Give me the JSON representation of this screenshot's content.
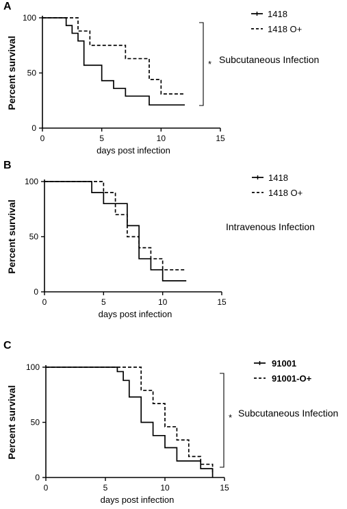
{
  "chart_data": [
    {
      "type": "line",
      "panel_label": "A",
      "xlabel": "days post infection",
      "ylabel": "Percent survival",
      "xlim": [
        0,
        15
      ],
      "ylim": [
        0,
        100
      ],
      "xticks": [
        0,
        5,
        10,
        15
      ],
      "yticks": [
        0,
        50,
        100
      ],
      "annotation": "Subcutaneous Infection",
      "significance": "*",
      "legend_position": "top-right",
      "series": [
        {
          "name": "1418",
          "style": "solid",
          "bold": false,
          "x": [
            0,
            2,
            2.5,
            3,
            3.5,
            4,
            5,
            6,
            7,
            9,
            12
          ],
          "y": [
            100,
            93,
            86,
            79,
            57,
            57,
            43,
            36,
            29,
            21,
            21
          ]
        },
        {
          "name": "1418 O+",
          "style": "dashed",
          "bold": false,
          "x": [
            0,
            2.5,
            3,
            4,
            5,
            7,
            9,
            10,
            12
          ],
          "y": [
            100,
            100,
            88,
            75,
            75,
            63,
            44,
            31,
            31
          ]
        }
      ]
    },
    {
      "type": "line",
      "panel_label": "B",
      "xlabel": "days post infection",
      "ylabel": "Percent survival",
      "xlim": [
        0,
        15
      ],
      "ylim": [
        0,
        100
      ],
      "xticks": [
        0,
        5,
        10,
        15
      ],
      "yticks": [
        0,
        50,
        100
      ],
      "annotation": "Intravenous Infection",
      "legend_position": "top-right",
      "series": [
        {
          "name": "1418",
          "style": "solid",
          "bold": false,
          "x": [
            0,
            4,
            5,
            6,
            7,
            8,
            9,
            10,
            12
          ],
          "y": [
            100,
            90,
            80,
            80,
            60,
            30,
            20,
            10,
            10
          ]
        },
        {
          "name": "1418 O+",
          "style": "dashed",
          "bold": false,
          "x": [
            0,
            5,
            6,
            7,
            8,
            9,
            10,
            12
          ],
          "y": [
            100,
            90,
            70,
            50,
            40,
            30,
            20,
            20
          ]
        }
      ]
    },
    {
      "type": "line",
      "panel_label": "C",
      "xlabel": "days post infection",
      "ylabel": "Percent survival",
      "xlim": [
        0,
        15
      ],
      "ylim": [
        0,
        100
      ],
      "xticks": [
        0,
        5,
        10,
        15
      ],
      "yticks": [
        0,
        50,
        100
      ],
      "annotation": "Subcutaneous Infection",
      "significance": "*",
      "legend_position": "top-right",
      "series": [
        {
          "name": "91001",
          "style": "solid",
          "bold": true,
          "x": [
            0,
            6,
            6.5,
            7,
            8,
            9,
            10,
            11,
            12,
            13,
            14
          ],
          "y": [
            100,
            96,
            88,
            73,
            50,
            38,
            27,
            15,
            15,
            8,
            0
          ]
        },
        {
          "name": "91001-O+",
          "style": "dashed",
          "bold": true,
          "x": [
            0,
            6.5,
            8,
            9,
            10,
            11,
            12,
            13,
            14
          ],
          "y": [
            100,
            100,
            79,
            67,
            46,
            34,
            19,
            12,
            4
          ]
        }
      ]
    }
  ]
}
